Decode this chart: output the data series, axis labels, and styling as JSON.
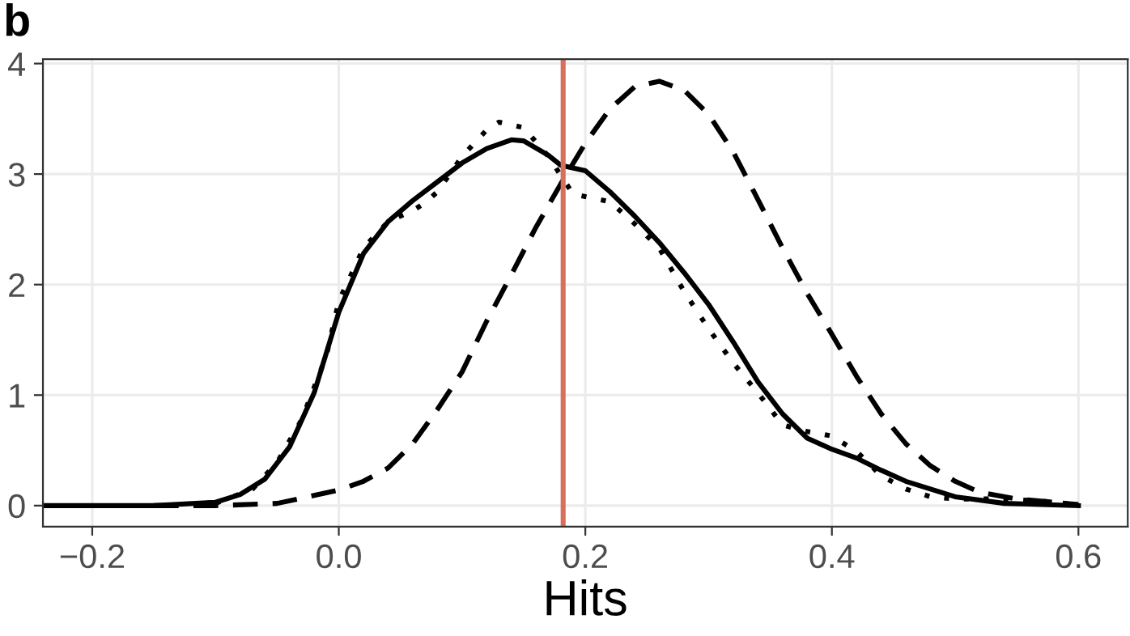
{
  "chart_data": {
    "type": "line",
    "title": "b",
    "xlabel": "Hits",
    "xlim": [
      -0.24,
      0.64
    ],
    "ylim": [
      -0.19,
      4.04
    ],
    "xticks": [
      {
        "value": -0.2,
        "label": "−0.2"
      },
      {
        "value": 0.0,
        "label": "0.0"
      },
      {
        "value": 0.2,
        "label": "0.2"
      },
      {
        "value": 0.4,
        "label": "0.4"
      },
      {
        "value": 0.6,
        "label": "0.6"
      }
    ],
    "yticks": [
      0,
      1,
      2,
      3,
      4
    ],
    "grid": true,
    "legend": false,
    "marker": "none",
    "ref_lines": [
      {
        "axis": "x",
        "value": 0.182,
        "color": "#d6705a",
        "line_style": "solid"
      }
    ],
    "series": [
      {
        "color": "#000000",
        "line_style": "solid",
        "x": [
          -0.24,
          -0.15,
          -0.1,
          -0.08,
          -0.06,
          -0.04,
          -0.02,
          0.0,
          0.02,
          0.04,
          0.06,
          0.08,
          0.1,
          0.12,
          0.14,
          0.15,
          0.17,
          0.18,
          0.2,
          0.22,
          0.24,
          0.26,
          0.28,
          0.3,
          0.32,
          0.34,
          0.36,
          0.38,
          0.4,
          0.42,
          0.44,
          0.46,
          0.48,
          0.5,
          0.54,
          0.6
        ],
        "values": [
          0.0,
          0.0,
          0.03,
          0.1,
          0.24,
          0.53,
          1.02,
          1.75,
          2.28,
          2.57,
          2.76,
          2.93,
          3.1,
          3.23,
          3.31,
          3.3,
          3.17,
          3.08,
          3.03,
          2.84,
          2.62,
          2.38,
          2.11,
          1.82,
          1.48,
          1.12,
          0.83,
          0.61,
          0.51,
          0.43,
          0.32,
          0.22,
          0.15,
          0.08,
          0.02,
          0.0
        ]
      },
      {
        "color": "#000000",
        "line_style": "dashed",
        "x": [
          -0.15,
          -0.1,
          -0.05,
          0.0,
          0.02,
          0.04,
          0.06,
          0.08,
          0.1,
          0.12,
          0.14,
          0.16,
          0.18,
          0.2,
          0.22,
          0.24,
          0.26,
          0.28,
          0.3,
          0.32,
          0.34,
          0.36,
          0.38,
          0.4,
          0.42,
          0.44,
          0.46,
          0.48,
          0.5,
          0.52,
          0.55,
          0.6
        ],
        "values": [
          0.0,
          0.0,
          0.02,
          0.14,
          0.22,
          0.34,
          0.56,
          0.87,
          1.21,
          1.67,
          2.09,
          2.52,
          2.91,
          3.28,
          3.59,
          3.79,
          3.84,
          3.76,
          3.54,
          3.2,
          2.77,
          2.33,
          1.92,
          1.55,
          1.17,
          0.83,
          0.56,
          0.36,
          0.22,
          0.12,
          0.06,
          0.01
        ]
      },
      {
        "color": "#000000",
        "line_style": "dotted",
        "x": [
          -0.1,
          -0.07,
          -0.05,
          -0.03,
          -0.01,
          0.0,
          0.02,
          0.04,
          0.06,
          0.07,
          0.08,
          0.1,
          0.12,
          0.13,
          0.15,
          0.17,
          0.19,
          0.22,
          0.24,
          0.26,
          0.28,
          0.3,
          0.32,
          0.34,
          0.36,
          0.38,
          0.4,
          0.42,
          0.44,
          0.46,
          0.48,
          0.5,
          0.54,
          0.57,
          0.6
        ],
        "values": [
          0.02,
          0.15,
          0.39,
          0.78,
          1.36,
          1.85,
          2.33,
          2.57,
          2.67,
          2.74,
          2.84,
          3.16,
          3.4,
          3.47,
          3.42,
          3.16,
          2.82,
          2.75,
          2.55,
          2.33,
          1.94,
          1.6,
          1.29,
          1.02,
          0.73,
          0.67,
          0.63,
          0.49,
          0.27,
          0.15,
          0.08,
          0.06,
          0.06,
          0.04,
          0.01
        ]
      }
    ]
  }
}
